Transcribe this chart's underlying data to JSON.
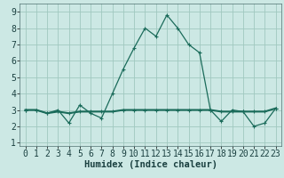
{
  "xlabel": "Humidex (Indice chaleur)",
  "x": [
    0,
    1,
    2,
    3,
    4,
    5,
    6,
    7,
    8,
    9,
    10,
    11,
    12,
    13,
    14,
    15,
    16,
    17,
    18,
    19,
    20,
    21,
    22,
    23
  ],
  "line1": [
    3.0,
    3.0,
    2.8,
    3.0,
    2.2,
    3.3,
    2.8,
    2.5,
    4.0,
    5.5,
    6.8,
    8.0,
    7.5,
    8.8,
    8.0,
    7.0,
    6.5,
    3.0,
    2.3,
    3.0,
    2.9,
    2.0,
    2.2,
    3.1
  ],
  "line2": [
    3.0,
    3.0,
    2.8,
    2.9,
    2.8,
    2.9,
    2.9,
    2.9,
    2.9,
    3.0,
    3.0,
    3.0,
    3.0,
    3.0,
    3.0,
    3.0,
    3.0,
    3.0,
    2.9,
    2.9,
    2.9,
    2.9,
    2.9,
    3.1
  ],
  "line_color": "#1a6b5a",
  "bg_color": "#cce8e4",
  "grid_color": "#a0c8c0",
  "xlim": [
    -0.5,
    23.5
  ],
  "ylim": [
    0.8,
    9.5
  ],
  "yticks": [
    1,
    2,
    3,
    4,
    5,
    6,
    7,
    8,
    9
  ],
  "xticks": [
    0,
    1,
    2,
    3,
    4,
    5,
    6,
    7,
    8,
    9,
    10,
    11,
    12,
    13,
    14,
    15,
    16,
    17,
    18,
    19,
    20,
    21,
    22,
    23
  ],
  "tick_fontsize": 7.0,
  "xlabel_fontsize": 7.5
}
